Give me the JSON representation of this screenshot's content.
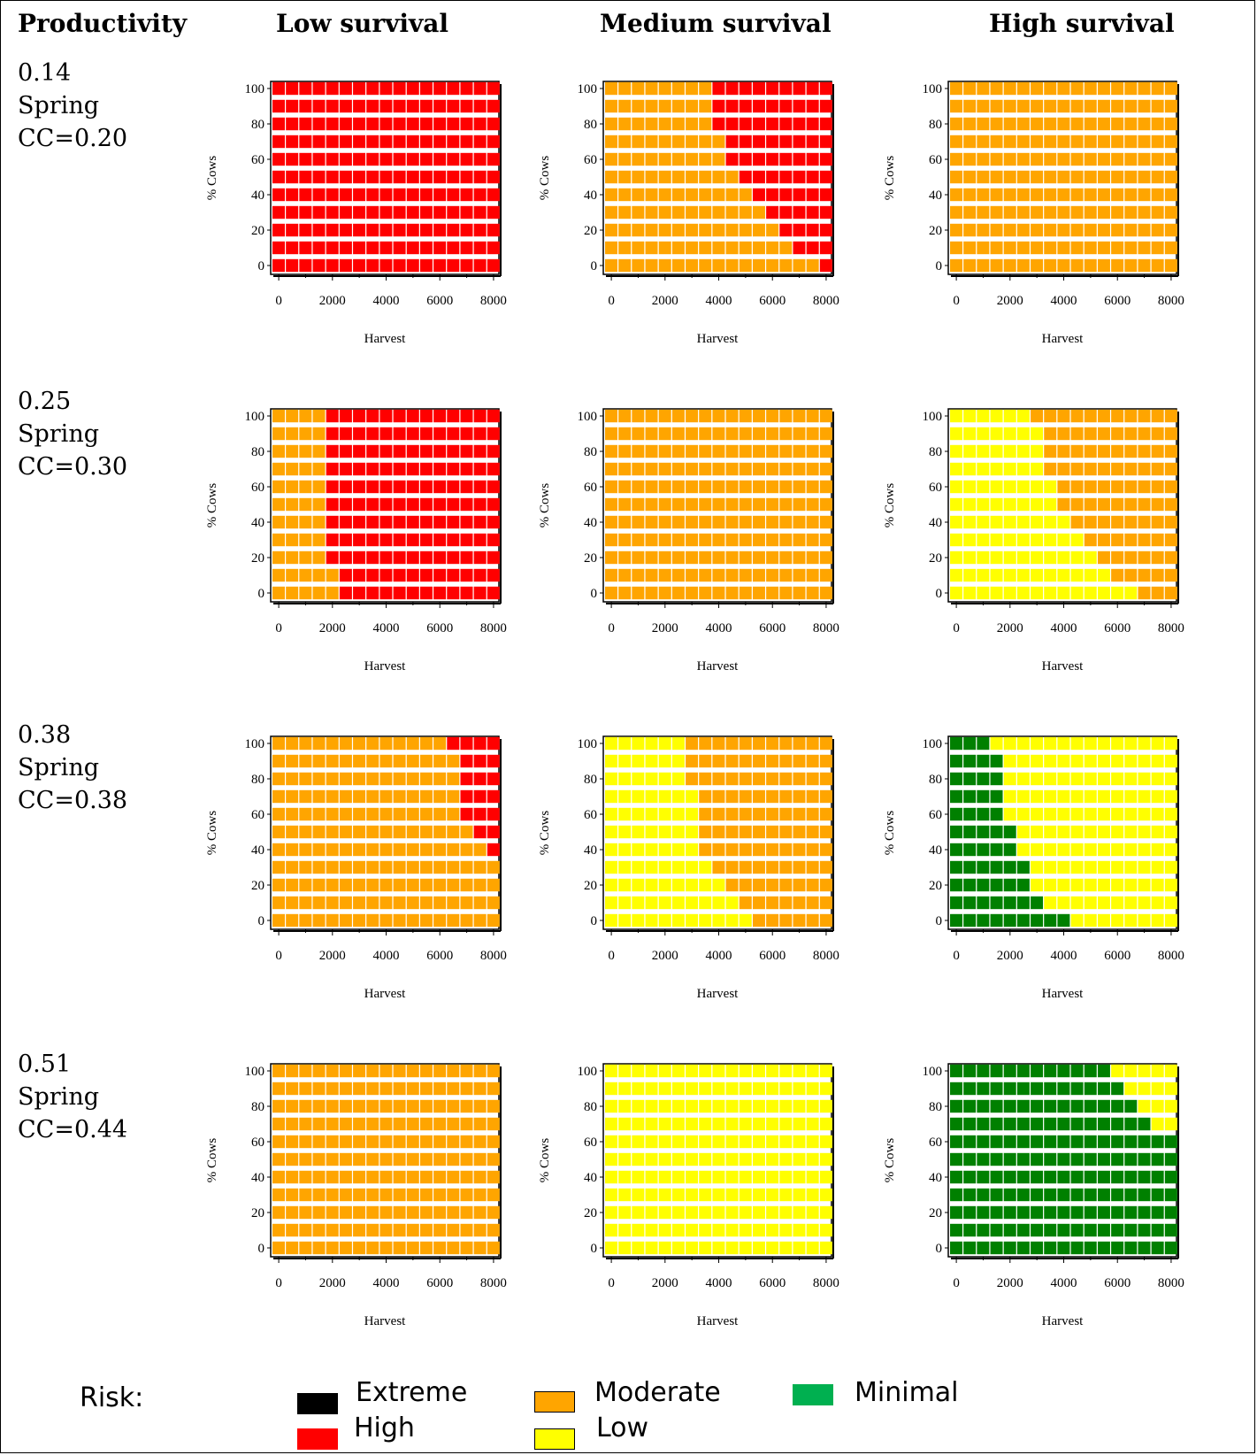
{
  "headers": {
    "productivity": "Productivity",
    "low": "Low survival",
    "medium": "Medium survival",
    "high": "High survival"
  },
  "rows": [
    {
      "value": "0.14",
      "season": "Spring",
      "cc": "CC=0.20"
    },
    {
      "value": "0.25",
      "season": "Spring",
      "cc": "CC=0.30"
    },
    {
      "value": "0.38",
      "season": "Spring",
      "cc": "CC=0.38"
    },
    {
      "value": "0.51",
      "season": "Spring",
      "cc": "CC=0.44"
    }
  ],
  "legend": {
    "title": "Risk:",
    "items": [
      {
        "label": "Extreme",
        "color": "#000000"
      },
      {
        "label": "High",
        "color": "#ff0000"
      },
      {
        "label": "Moderate",
        "color": "#ffa500"
      },
      {
        "label": "Low",
        "color": "#ffff00"
      },
      {
        "label": "Minimal",
        "color": "#00b050"
      }
    ]
  },
  "chart_data": [
    {
      "type": "heatmap",
      "row": 0,
      "col": 0,
      "xlabel": "Harvest",
      "ylabel": "% Cows",
      "xlim": [
        0,
        8000
      ],
      "ylim": [
        0,
        100
      ],
      "x_ticks": [
        0,
        2000,
        4000,
        6000,
        8000
      ],
      "y_ticks": [
        0,
        20,
        40,
        60,
        80,
        100
      ],
      "colors": {
        "left": "#ff0000",
        "right": "#ff0000"
      },
      "thresholds": [
        {
          "y": 0,
          "harvest": 0
        },
        {
          "y": 10,
          "harvest": 0
        },
        {
          "y": 20,
          "harvest": 0
        },
        {
          "y": 30,
          "harvest": 0
        },
        {
          "y": 40,
          "harvest": 0
        },
        {
          "y": 50,
          "harvest": 0
        },
        {
          "y": 60,
          "harvest": 0
        },
        {
          "y": 70,
          "harvest": 0
        },
        {
          "y": 80,
          "harvest": 0
        },
        {
          "y": 90,
          "harvest": 0
        },
        {
          "y": 100,
          "harvest": 0
        }
      ]
    },
    {
      "type": "heatmap",
      "row": 0,
      "col": 1,
      "xlabel": "Harvest",
      "ylabel": "% Cows",
      "xlim": [
        0,
        8000
      ],
      "ylim": [
        0,
        100
      ],
      "x_ticks": [
        0,
        2000,
        4000,
        6000,
        8000
      ],
      "y_ticks": [
        0,
        20,
        40,
        60,
        80,
        100
      ],
      "colors": {
        "left": "#ffa500",
        "right": "#ff0000"
      },
      "thresholds": [
        {
          "y": 0,
          "harvest": 7800
        },
        {
          "y": 10,
          "harvest": 6800
        },
        {
          "y": 20,
          "harvest": 6200
        },
        {
          "y": 30,
          "harvest": 5800
        },
        {
          "y": 40,
          "harvest": 5200
        },
        {
          "y": 50,
          "harvest": 4800
        },
        {
          "y": 60,
          "harvest": 4500
        },
        {
          "y": 70,
          "harvest": 4400
        },
        {
          "y": 80,
          "harvest": 3900
        },
        {
          "y": 90,
          "harvest": 3900
        },
        {
          "y": 100,
          "harvest": 3800
        }
      ]
    },
    {
      "type": "heatmap",
      "row": 0,
      "col": 2,
      "xlabel": "Harvest",
      "ylabel": "% Cows",
      "xlim": [
        0,
        8000
      ],
      "ylim": [
        0,
        100
      ],
      "x_ticks": [
        0,
        2000,
        4000,
        6000,
        8000
      ],
      "y_ticks": [
        0,
        20,
        40,
        60,
        80,
        100
      ],
      "colors": {
        "left": "#ffa500",
        "right": "#ffa500"
      },
      "thresholds": [
        {
          "y": 0,
          "harvest": 8200
        },
        {
          "y": 10,
          "harvest": 8200
        },
        {
          "y": 20,
          "harvest": 8200
        },
        {
          "y": 30,
          "harvest": 8200
        },
        {
          "y": 40,
          "harvest": 8200
        },
        {
          "y": 50,
          "harvest": 8200
        },
        {
          "y": 60,
          "harvest": 8200
        },
        {
          "y": 70,
          "harvest": 8200
        },
        {
          "y": 80,
          "harvest": 8200
        },
        {
          "y": 90,
          "harvest": 8200
        },
        {
          "y": 100,
          "harvest": 8200
        }
      ]
    },
    {
      "type": "heatmap",
      "row": 1,
      "col": 0,
      "xlabel": "Harvest",
      "ylabel": "% Cows",
      "xlim": [
        0,
        8000
      ],
      "ylim": [
        0,
        100
      ],
      "x_ticks": [
        0,
        2000,
        4000,
        6000,
        8000
      ],
      "y_ticks": [
        0,
        20,
        40,
        60,
        80,
        100
      ],
      "colors": {
        "left": "#ffa500",
        "right": "#ff0000"
      },
      "thresholds": [
        {
          "y": 0,
          "harvest": 2300
        },
        {
          "y": 10,
          "harvest": 2300
        },
        {
          "y": 20,
          "harvest": 1800
        },
        {
          "y": 30,
          "harvest": 1800
        },
        {
          "y": 40,
          "harvest": 1800
        },
        {
          "y": 50,
          "harvest": 1800
        },
        {
          "y": 60,
          "harvest": 1800
        },
        {
          "y": 70,
          "harvest": 1800
        },
        {
          "y": 80,
          "harvest": 1800
        },
        {
          "y": 90,
          "harvest": 1800
        },
        {
          "y": 100,
          "harvest": 1800
        }
      ]
    },
    {
      "type": "heatmap",
      "row": 1,
      "col": 1,
      "xlabel": "Harvest",
      "ylabel": "% Cows",
      "xlim": [
        0,
        8000
      ],
      "ylim": [
        0,
        100
      ],
      "x_ticks": [
        0,
        2000,
        4000,
        6000,
        8000
      ],
      "y_ticks": [
        0,
        20,
        40,
        60,
        80,
        100
      ],
      "colors": {
        "left": "#ffa500",
        "right": "#ffa500"
      },
      "thresholds": [
        {
          "y": 0,
          "harvest": 8200
        },
        {
          "y": 10,
          "harvest": 8200
        },
        {
          "y": 20,
          "harvest": 8200
        },
        {
          "y": 30,
          "harvest": 8200
        },
        {
          "y": 40,
          "harvest": 8200
        },
        {
          "y": 50,
          "harvest": 8200
        },
        {
          "y": 60,
          "harvest": 8200
        },
        {
          "y": 70,
          "harvest": 8200
        },
        {
          "y": 80,
          "harvest": 8200
        },
        {
          "y": 90,
          "harvest": 8200
        },
        {
          "y": 100,
          "harvest": 8200
        }
      ]
    },
    {
      "type": "heatmap",
      "row": 1,
      "col": 2,
      "xlabel": "Harvest",
      "ylabel": "% Cows",
      "xlim": [
        0,
        8000
      ],
      "ylim": [
        0,
        100
      ],
      "x_ticks": [
        0,
        2000,
        4000,
        6000,
        8000
      ],
      "y_ticks": [
        0,
        20,
        40,
        60,
        80,
        100
      ],
      "colors": {
        "left": "#ffff00",
        "right": "#ffa500"
      },
      "thresholds": [
        {
          "y": 0,
          "harvest": 6800
        },
        {
          "y": 10,
          "harvest": 5800
        },
        {
          "y": 20,
          "harvest": 5300
        },
        {
          "y": 30,
          "harvest": 4800
        },
        {
          "y": 40,
          "harvest": 4300
        },
        {
          "y": 50,
          "harvest": 3800
        },
        {
          "y": 60,
          "harvest": 3800
        },
        {
          "y": 70,
          "harvest": 3300
        },
        {
          "y": 80,
          "harvest": 3300
        },
        {
          "y": 90,
          "harvest": 3300
        },
        {
          "y": 100,
          "harvest": 2800
        }
      ]
    },
    {
      "type": "heatmap",
      "row": 2,
      "col": 0,
      "xlabel": "Harvest",
      "ylabel": "% Cows",
      "xlim": [
        0,
        8000
      ],
      "ylim": [
        0,
        100
      ],
      "x_ticks": [
        0,
        2000,
        4000,
        6000,
        8000
      ],
      "y_ticks": [
        0,
        20,
        40,
        60,
        80,
        100
      ],
      "colors": {
        "left": "#ffa500",
        "right": "#ff0000"
      },
      "thresholds": [
        {
          "y": 0,
          "harvest": 8200
        },
        {
          "y": 10,
          "harvest": 8200
        },
        {
          "y": 20,
          "harvest": 8200
        },
        {
          "y": 30,
          "harvest": 8200
        },
        {
          "y": 40,
          "harvest": 7800
        },
        {
          "y": 50,
          "harvest": 7300
        },
        {
          "y": 60,
          "harvest": 6800
        },
        {
          "y": 70,
          "harvest": 6800
        },
        {
          "y": 80,
          "harvest": 6800
        },
        {
          "y": 90,
          "harvest": 6800
        },
        {
          "y": 100,
          "harvest": 6300
        }
      ]
    },
    {
      "type": "heatmap",
      "row": 2,
      "col": 1,
      "xlabel": "Harvest",
      "ylabel": "% Cows",
      "xlim": [
        0,
        8000
      ],
      "ylim": [
        0,
        100
      ],
      "x_ticks": [
        0,
        2000,
        4000,
        6000,
        8000
      ],
      "y_ticks": [
        0,
        20,
        40,
        60,
        80,
        100
      ],
      "colors": {
        "left": "#ffff00",
        "right": "#ffa500"
      },
      "thresholds": [
        {
          "y": 0,
          "harvest": 5300
        },
        {
          "y": 10,
          "harvest": 4800
        },
        {
          "y": 20,
          "harvest": 4300
        },
        {
          "y": 30,
          "harvest": 3800
        },
        {
          "y": 40,
          "harvest": 3300
        },
        {
          "y": 50,
          "harvest": 3300
        },
        {
          "y": 60,
          "harvest": 3300
        },
        {
          "y": 70,
          "harvest": 3300
        },
        {
          "y": 80,
          "harvest": 2800
        },
        {
          "y": 90,
          "harvest": 2800
        },
        {
          "y": 100,
          "harvest": 2800
        }
      ]
    },
    {
      "type": "heatmap",
      "row": 2,
      "col": 2,
      "xlabel": "Harvest",
      "ylabel": "% Cows",
      "xlim": [
        0,
        8000
      ],
      "ylim": [
        0,
        100
      ],
      "x_ticks": [
        0,
        2000,
        4000,
        6000,
        8000
      ],
      "y_ticks": [
        0,
        20,
        40,
        60,
        80,
        100
      ],
      "colors": {
        "left": "#008000",
        "right": "#ffff00"
      },
      "thresholds": [
        {
          "y": 0,
          "harvest": 4300
        },
        {
          "y": 10,
          "harvest": 3300
        },
        {
          "y": 20,
          "harvest": 2800
        },
        {
          "y": 30,
          "harvest": 2800
        },
        {
          "y": 40,
          "harvest": 2300
        },
        {
          "y": 50,
          "harvest": 2300
        },
        {
          "y": 60,
          "harvest": 1800
        },
        {
          "y": 70,
          "harvest": 1800
        },
        {
          "y": 80,
          "harvest": 1800
        },
        {
          "y": 90,
          "harvest": 1800
        },
        {
          "y": 100,
          "harvest": 1300
        }
      ]
    },
    {
      "type": "heatmap",
      "row": 3,
      "col": 0,
      "xlabel": "Harvest",
      "ylabel": "% Cows",
      "xlim": [
        0,
        8000
      ],
      "ylim": [
        0,
        100
      ],
      "x_ticks": [
        0,
        2000,
        4000,
        6000,
        8000
      ],
      "y_ticks": [
        0,
        20,
        40,
        60,
        80,
        100
      ],
      "colors": {
        "left": "#ffa500",
        "right": "#ffa500"
      },
      "thresholds": [
        {
          "y": 0,
          "harvest": 8200
        },
        {
          "y": 10,
          "harvest": 8200
        },
        {
          "y": 20,
          "harvest": 8200
        },
        {
          "y": 30,
          "harvest": 8200
        },
        {
          "y": 40,
          "harvest": 8200
        },
        {
          "y": 50,
          "harvest": 8200
        },
        {
          "y": 60,
          "harvest": 8200
        },
        {
          "y": 70,
          "harvest": 8200
        },
        {
          "y": 80,
          "harvest": 8200
        },
        {
          "y": 90,
          "harvest": 8200
        },
        {
          "y": 100,
          "harvest": 8200
        }
      ]
    },
    {
      "type": "heatmap",
      "row": 3,
      "col": 1,
      "xlabel": "Harvest",
      "ylabel": "% Cows",
      "xlim": [
        0,
        8000
      ],
      "ylim": [
        0,
        100
      ],
      "x_ticks": [
        0,
        2000,
        4000,
        6000,
        8000
      ],
      "y_ticks": [
        0,
        20,
        40,
        60,
        80,
        100
      ],
      "colors": {
        "left": "#ffff00",
        "right": "#ffff00"
      },
      "thresholds": [
        {
          "y": 0,
          "harvest": 8200
        },
        {
          "y": 10,
          "harvest": 8200
        },
        {
          "y": 20,
          "harvest": 8200
        },
        {
          "y": 30,
          "harvest": 8200
        },
        {
          "y": 40,
          "harvest": 8200
        },
        {
          "y": 50,
          "harvest": 8200
        },
        {
          "y": 60,
          "harvest": 8200
        },
        {
          "y": 70,
          "harvest": 8200
        },
        {
          "y": 80,
          "harvest": 8200
        },
        {
          "y": 90,
          "harvest": 8200
        },
        {
          "y": 100,
          "harvest": 8200
        }
      ]
    },
    {
      "type": "heatmap",
      "row": 3,
      "col": 2,
      "xlabel": "Harvest",
      "ylabel": "% Cows",
      "xlim": [
        0,
        8000
      ],
      "ylim": [
        0,
        100
      ],
      "x_ticks": [
        0,
        2000,
        4000,
        6000,
        8000
      ],
      "y_ticks": [
        0,
        20,
        40,
        60,
        80,
        100
      ],
      "colors": {
        "left": "#008000",
        "right": "#ffff00"
      },
      "thresholds": [
        {
          "y": 0,
          "harvest": 8200
        },
        {
          "y": 10,
          "harvest": 8200
        },
        {
          "y": 20,
          "harvest": 8200
        },
        {
          "y": 30,
          "harvest": 8200
        },
        {
          "y": 40,
          "harvest": 8200
        },
        {
          "y": 50,
          "harvest": 8200
        },
        {
          "y": 60,
          "harvest": 8200
        },
        {
          "y": 70,
          "harvest": 7300
        },
        {
          "y": 80,
          "harvest": 6800
        },
        {
          "y": 90,
          "harvest": 6300
        },
        {
          "y": 100,
          "harvest": 5800
        }
      ]
    }
  ]
}
